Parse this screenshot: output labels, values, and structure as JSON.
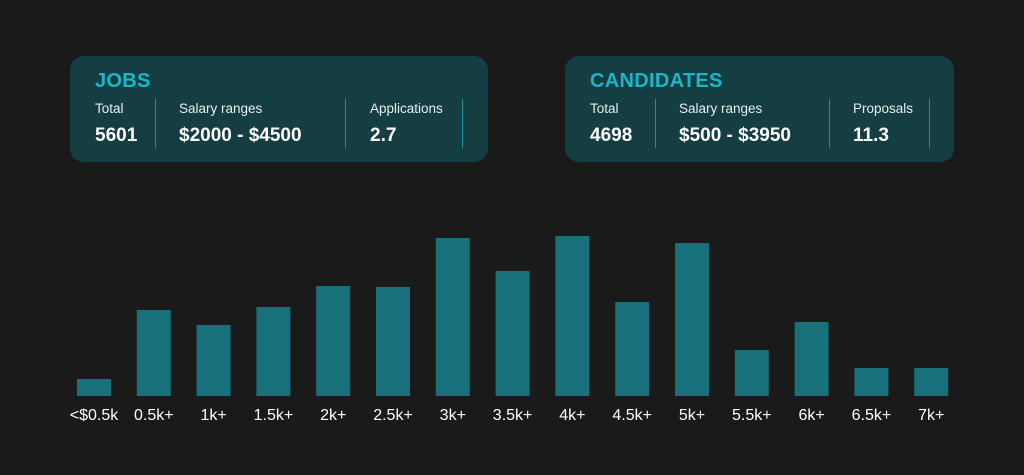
{
  "jobs": {
    "title": "JOBS",
    "stats": [
      {
        "label": "Total",
        "value": "5601"
      },
      {
        "label": "Salary ranges",
        "value": "$2000 - $4500"
      },
      {
        "label": "Applications",
        "value": "2.7"
      }
    ]
  },
  "candidates": {
    "title": "CANDIDATES",
    "stats": [
      {
        "label": "Total",
        "value": "4698"
      },
      {
        "label": "Salary ranges",
        "value": "$500 - $3950"
      },
      {
        "label": "Proposals",
        "value": "11.3"
      }
    ]
  },
  "colors": {
    "background": "#1b1a1a",
    "card": "#153e42",
    "accent": "#1ab6c9",
    "bar": "#17707a",
    "divider": "#1f8f9a"
  },
  "chart_data": {
    "type": "bar",
    "categories": [
      "<$0.5k",
      "0.5k+",
      "1k+",
      "1.5k+",
      "2k+",
      "2.5k+",
      "3k+",
      "3.5k+",
      "4k+",
      "4.5k+",
      "5k+",
      "5.5k+",
      "6k+",
      "6.5k+",
      "7k+"
    ],
    "values": [
      17,
      86,
      71,
      89,
      110,
      109,
      158,
      125,
      160,
      94,
      153,
      46,
      74,
      28,
      28
    ],
    "title": "",
    "xlabel": "",
    "ylabel": "",
    "ylim": [
      0,
      165
    ],
    "grid": false,
    "legend": "none"
  }
}
